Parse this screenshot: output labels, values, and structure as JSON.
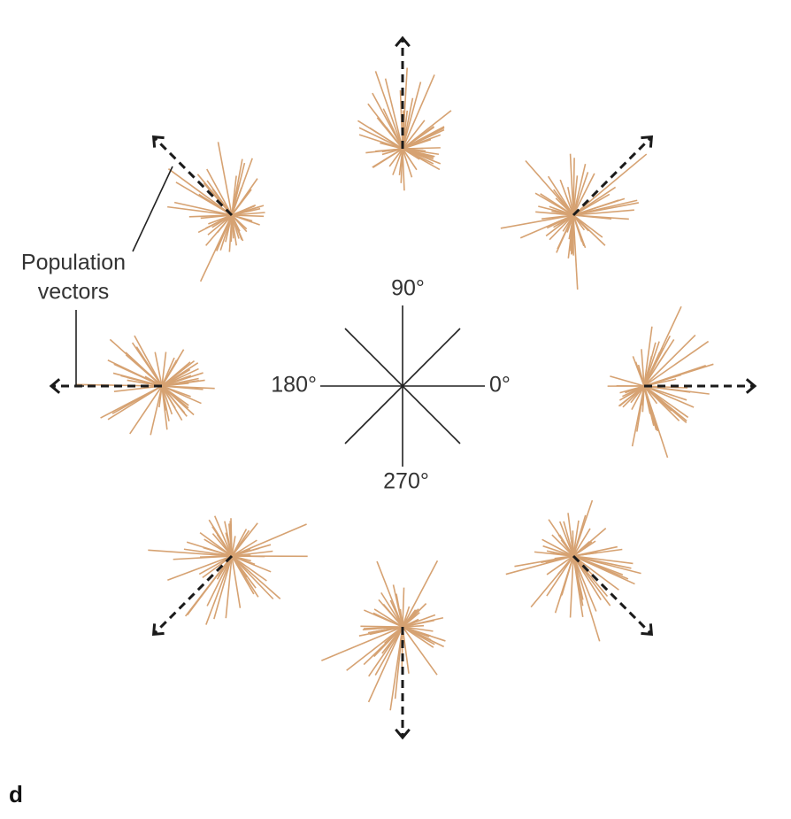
{
  "compass": {
    "east": "0°",
    "north": "90°",
    "west": "180°",
    "south": "270°"
  },
  "annotation": {
    "line1": "Population",
    "line2": "vectors"
  },
  "panel_label": "d"
}
